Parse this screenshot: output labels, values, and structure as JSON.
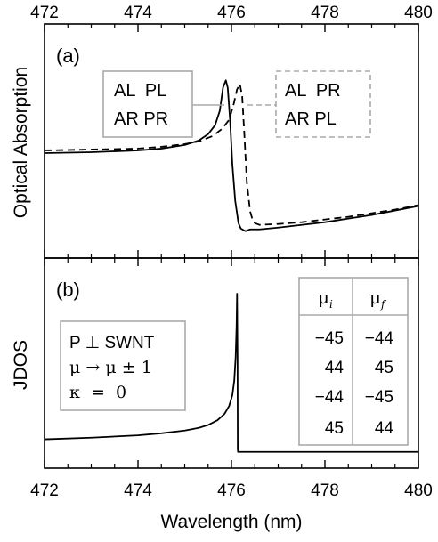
{
  "chart_data": [
    {
      "type": "line",
      "panel_label": "(a)",
      "ylabel": "Optical Absorption",
      "xlim": [
        472,
        480
      ],
      "x_ticks": [
        "472",
        "474",
        "476",
        "478",
        "480"
      ],
      "legend_solid": {
        "line1": "AL  PL",
        "line2": "AR PR"
      },
      "legend_dashed": {
        "line1": "AL  PR",
        "line2": "AR PL"
      },
      "series": [
        {
          "style": "solid",
          "x": [
            472.0,
            473.0,
            474.0,
            474.5,
            475.0,
            475.3,
            475.5,
            475.65,
            475.75,
            475.82,
            475.88,
            475.92,
            475.97,
            476.02,
            476.08,
            476.15,
            476.2,
            476.3,
            476.4,
            476.6,
            477.0,
            477.5,
            478.0,
            478.5,
            479.0,
            479.5,
            480.0
          ],
          "y": [
            0.565,
            0.57,
            0.58,
            0.59,
            0.61,
            0.635,
            0.67,
            0.72,
            0.8,
            0.93,
            0.97,
            0.93,
            0.75,
            0.5,
            0.3,
            0.175,
            0.145,
            0.13,
            0.14,
            0.14,
            0.15,
            0.165,
            0.18,
            0.2,
            0.22,
            0.245,
            0.27
          ]
        },
        {
          "style": "dashed",
          "x": [
            472.0,
            473.0,
            474.0,
            474.5,
            475.0,
            475.3,
            475.6,
            475.8,
            475.95,
            476.05,
            476.12,
            476.18,
            476.23,
            476.28,
            476.33,
            476.4,
            476.45,
            476.5,
            476.6,
            477.0,
            477.5,
            478.0,
            478.5,
            479.0,
            479.5,
            480.0
          ],
          "y": [
            0.58,
            0.585,
            0.59,
            0.6,
            0.615,
            0.63,
            0.66,
            0.7,
            0.75,
            0.84,
            0.92,
            0.95,
            0.88,
            0.65,
            0.4,
            0.24,
            0.195,
            0.175,
            0.165,
            0.17,
            0.18,
            0.195,
            0.21,
            0.23,
            0.25,
            0.275
          ]
        }
      ]
    },
    {
      "type": "line",
      "panel_label": "(b)",
      "ylabel": "JDOS",
      "xlabel": "Wavelength (nm)",
      "xlim": [
        472,
        480
      ],
      "x_ticks": [
        "472",
        "474",
        "476",
        "478",
        "480"
      ],
      "annotation": {
        "line1": "P ⊥ SWNT",
        "line2": "μ → μ ± 1",
        "line3": "κ  =  0"
      },
      "table": {
        "headers": [
          "μ",
          "μ"
        ],
        "header_subscripts": [
          "i",
          "f"
        ],
        "rows": [
          [
            "−45",
            "−44"
          ],
          [
            "44",
            "45"
          ],
          [
            "−44",
            "−45"
          ],
          [
            "45",
            "44"
          ]
        ]
      },
      "series": [
        {
          "style": "solid",
          "x": [
            472.0,
            473.0,
            474.0,
            474.5,
            475.0,
            475.3,
            475.5,
            475.7,
            475.85,
            475.95,
            476.02,
            476.06,
            476.09,
            476.11,
            476.12,
            476.13,
            476.135,
            476.14,
            477.0,
            478.0,
            479.0,
            480.0
          ],
          "y": [
            0.08,
            0.09,
            0.105,
            0.118,
            0.135,
            0.152,
            0.17,
            0.2,
            0.24,
            0.29,
            0.36,
            0.45,
            0.6,
            0.8,
            1.0,
            0.6,
            0.02,
            0.0,
            0.0,
            0.0,
            0.0,
            0.0
          ]
        }
      ]
    }
  ]
}
